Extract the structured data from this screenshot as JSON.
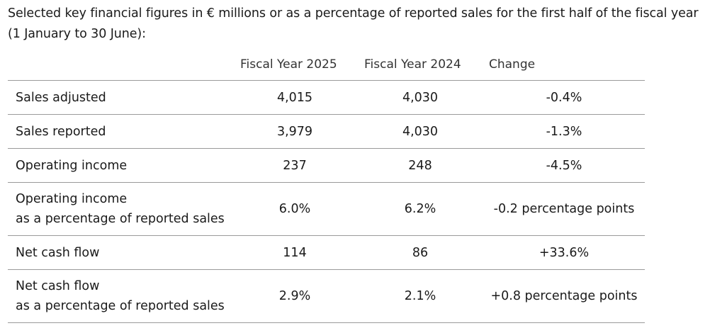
{
  "intro": {
    "line1": "Selected key financial figures in € millions or as a percentage of reported sales for the first half of the fiscal year",
    "line2": "(1 January to 30 June):"
  },
  "table": {
    "headers": [
      "Fiscal Year 2025",
      "Fiscal Year 2024",
      "Change"
    ],
    "rows": [
      {
        "label_line1": "Sales adjusted",
        "label_line2": "",
        "fy2025": "4,015",
        "fy2024": "4,030",
        "change": "-0.4%"
      },
      {
        "label_line1": "Sales reported",
        "label_line2": "",
        "fy2025": "3,979",
        "fy2024": "4,030",
        "change": "-1.3%"
      },
      {
        "label_line1": "Operating income",
        "label_line2": "",
        "fy2025": "237",
        "fy2024": "248",
        "change": "-4.5%"
      },
      {
        "label_line1": "Operating income",
        "label_line2": "as a percentage of reported sales",
        "fy2025": "6.0%",
        "fy2024": "6.2%",
        "change": "-0.2 percentage points"
      },
      {
        "label_line1": "Net cash flow",
        "label_line2": "",
        "fy2025": "114",
        "fy2024": "86",
        "change": "+33.6%"
      },
      {
        "label_line1": "Net cash flow",
        "label_line2": "as a percentage of reported sales",
        "fy2025": "2.9%",
        "fy2024": "2.1%",
        "change": "+0.8 percentage points"
      }
    ]
  }
}
